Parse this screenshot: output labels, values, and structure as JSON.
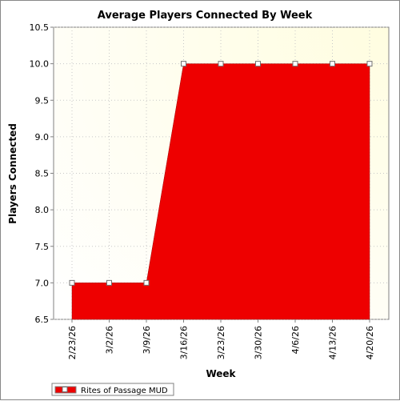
{
  "chart_data": {
    "type": "area",
    "title": "Average Players Connected By Week",
    "xlabel": "Week",
    "ylabel": "Players Connected",
    "categories": [
      "2/23/26",
      "3/2/26",
      "3/9/26",
      "3/16/26",
      "3/23/26",
      "3/30/26",
      "4/6/26",
      "4/13/26",
      "4/20/26"
    ],
    "series": [
      {
        "name": "Rites of Passage MUD",
        "values": [
          7.0,
          7.0,
          7.0,
          10.0,
          10.0,
          10.0,
          10.0,
          10.0,
          10.0
        ],
        "color": "#ee0000"
      }
    ],
    "ylim": [
      6.5,
      10.5
    ],
    "yticks": [
      "6.5",
      "7.0",
      "7.5",
      "8.0",
      "8.5",
      "9.0",
      "9.5",
      "10.0",
      "10.5"
    ],
    "grid": true,
    "legend_position": "bottom-left",
    "plot_background": "#fffff0"
  }
}
